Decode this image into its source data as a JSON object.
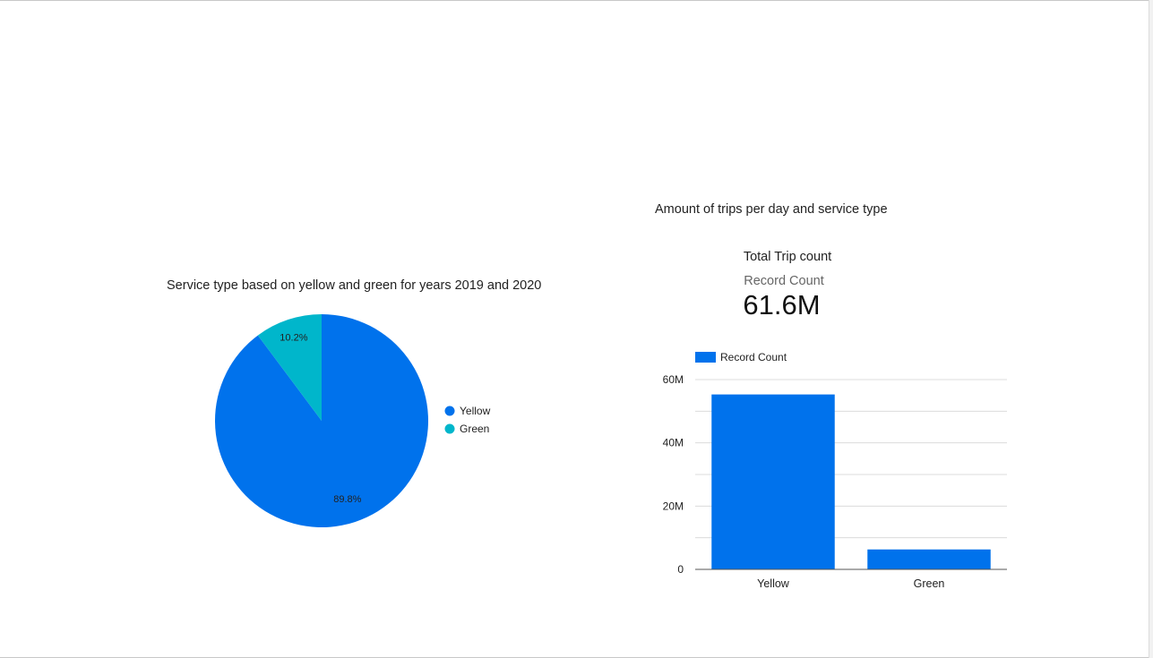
{
  "chart_data": [
    {
      "type": "pie",
      "title": "Service type based on yellow and green for years 2019 and 2020",
      "slices": [
        {
          "label": "Yellow",
          "percent": 89.8,
          "percent_label": "89.8%",
          "color": "#0072ec"
        },
        {
          "label": "Green",
          "percent": 10.2,
          "percent_label": "10.2%",
          "color": "#00b6cb"
        }
      ],
      "legend_position": "right"
    },
    {
      "type": "bar",
      "title": "Amount of trips per day and service type",
      "categories": [
        "Yellow",
        "Green"
      ],
      "series": [
        {
          "name": "Record Count",
          "values": [
            55300000,
            6300000
          ],
          "color": "#0072ec"
        }
      ],
      "ylim": [
        0,
        60000000
      ],
      "yticks": [
        {
          "value": 0,
          "label": "0"
        },
        {
          "value": 20000000,
          "label": "20M"
        },
        {
          "value": 40000000,
          "label": "40M"
        },
        {
          "value": 60000000,
          "label": "60M"
        }
      ],
      "grid": true,
      "legend_position": "top-left"
    }
  ],
  "scorecard": {
    "title": "Total Trip count",
    "label": "Record Count",
    "value": "61.6M"
  }
}
